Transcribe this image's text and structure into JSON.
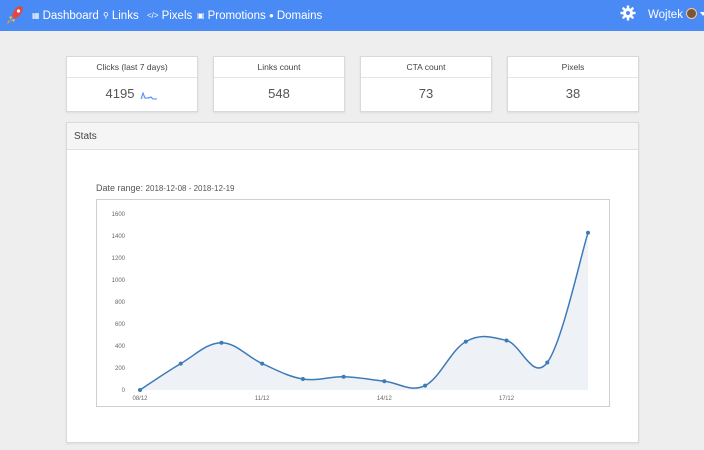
{
  "nav": {
    "items": [
      {
        "label": "Dashboard",
        "icon": "grid-icon"
      },
      {
        "label": "Links",
        "icon": "link-icon"
      },
      {
        "label": "Pixels",
        "icon": "code-icon"
      },
      {
        "label": "Promotions",
        "icon": "calendar-icon"
      },
      {
        "label": "Domains",
        "icon": "globe-icon"
      }
    ],
    "user_name": "Wojtek",
    "accent_color": "#4a8af4"
  },
  "cards": [
    {
      "title": "Clicks (last 7 days)",
      "value": "4195"
    },
    {
      "title": "Links count",
      "value": "548"
    },
    {
      "title": "CTA count",
      "value": "73"
    },
    {
      "title": "Pixels",
      "value": "38"
    }
  ],
  "stats": {
    "title": "Stats",
    "range_label": "Date range:",
    "range_value": "2018-12-08 - 2018-12-19"
  },
  "chart_data": {
    "type": "area",
    "dates": [
      "08/12",
      "09/12",
      "10/12",
      "11/12",
      "12/12",
      "13/12",
      "14/12",
      "15/12",
      "16/12",
      "17/12",
      "18/12",
      "19/12"
    ],
    "x_tick_labels": [
      "08/12",
      "11/12",
      "14/12",
      "17/12"
    ],
    "values": [
      0,
      240,
      430,
      240,
      100,
      120,
      80,
      40,
      440,
      450,
      250,
      1430
    ],
    "y_ticks": [
      0,
      200,
      400,
      600,
      800,
      1000,
      1200,
      1400,
      1600
    ],
    "ylim": [
      0,
      1600
    ],
    "line_color": "#3d7ab8",
    "fill_color": "#eef2f7",
    "grid": false
  }
}
